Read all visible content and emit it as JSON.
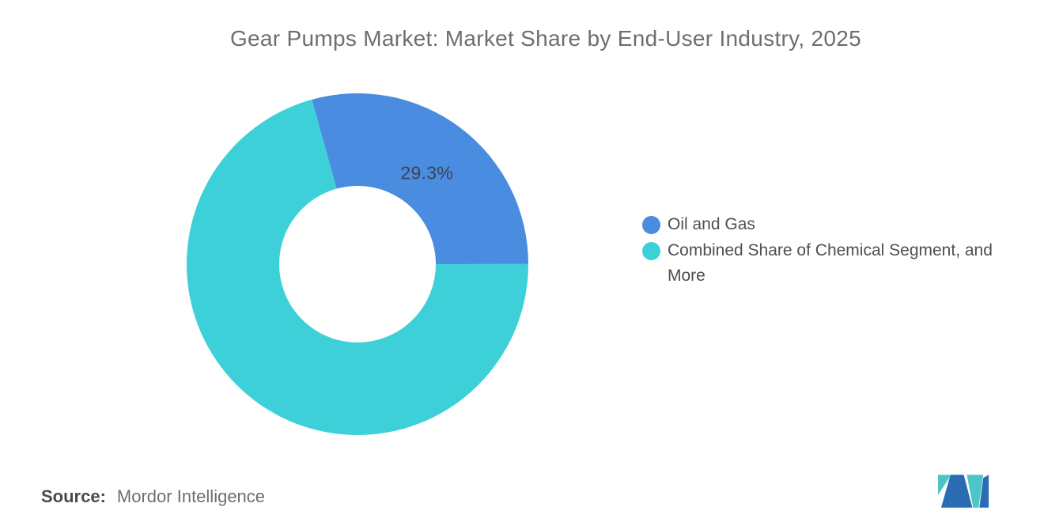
{
  "page": {
    "background": "#ffffff",
    "source": {
      "label": "Source:",
      "value": "Mordor Intelligence"
    }
  },
  "branding": {
    "logo_blue": "#2a6cb3",
    "logo_teal": "#4cc5c9"
  },
  "chart_data": {
    "type": "pie",
    "subtype": "donut",
    "title": "Gear Pumps Market: Market Share by End-User Industry, 2025",
    "start_angle_deg": -15.5,
    "inner_radius_pct": 46,
    "legend_position": "right-middle",
    "series": [
      {
        "id": "oil-and-gas",
        "name": "Oil and Gas",
        "value": 29.3,
        "color": "#4a8ce0",
        "data_label": "29.3%"
      },
      {
        "id": "combined-share",
        "name": "Combined Share of Chemical Segment, and More",
        "value": 70.7,
        "color": "#3ed0d8",
        "data_label": ""
      }
    ]
  }
}
